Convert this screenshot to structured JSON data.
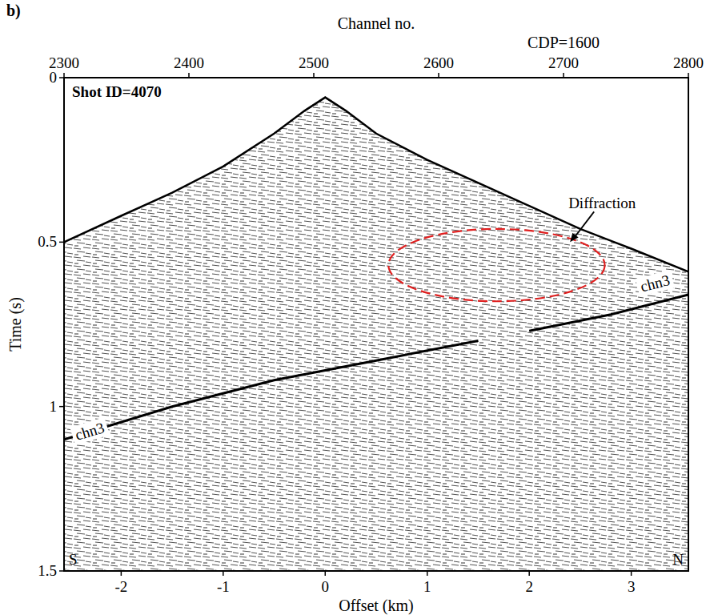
{
  "chart_data": {
    "type": "seismic",
    "panel_label": "b)",
    "title": "Shot ID=4070",
    "x_label": "Offset (km)",
    "y_label": "Time (s)",
    "xlim": [
      -2.56,
      3.56
    ],
    "xticks": [
      -2,
      -1,
      0,
      1,
      2,
      3
    ],
    "ylim": [
      1.5,
      0
    ],
    "yticks": [
      0,
      0.5,
      1,
      1.5
    ],
    "top_axis": {
      "label": "Channel no.",
      "xlim": [
        2300,
        2800
      ],
      "xticks": [
        2300,
        2400,
        2500,
        2600,
        2700,
        2800
      ],
      "marker_text": "CDP=1600",
      "marker_channel": 2700
    },
    "series": [
      {
        "color": "#000000",
        "x": [
          -2.56,
          -2,
          -1.5,
          -1,
          -0.5,
          -0.2,
          0,
          0.2,
          0.5,
          1,
          1.5,
          2,
          2.5,
          3,
          3.56
        ],
        "values": [
          0.5,
          0.42,
          0.35,
          0.27,
          0.17,
          0.1,
          0.06,
          0.1,
          0.17,
          0.25,
          0.32,
          0.39,
          0.46,
          0.52,
          0.59
        ]
      },
      {
        "name": "chn3",
        "color": "#000000",
        "x": [
          -2.56,
          -1.5,
          -0.5,
          0.5,
          1.5
        ],
        "values": [
          1.1,
          1.0,
          0.92,
          0.86,
          0.8
        ]
      },
      {
        "name": "chn3",
        "color": "#000000",
        "x": [
          2.0,
          2.8,
          3.56
        ],
        "values": [
          0.77,
          0.72,
          0.66
        ]
      }
    ],
    "diffraction": {
      "label": "Diffraction",
      "color": "#e02020",
      "x": 1.68,
      "t": 0.57,
      "x_radius": 1.06,
      "t_radius": 0.11,
      "arrow_x": 2.4,
      "arrow_t": 0.5
    },
    "south_label": "S",
    "north_label": "N"
  }
}
